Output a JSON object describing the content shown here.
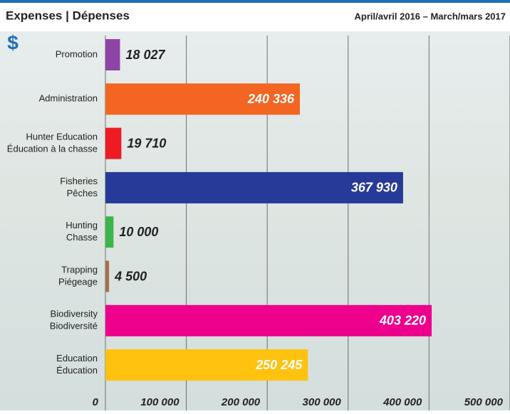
{
  "chart_data": {
    "type": "hbar",
    "title": "Expenses | Dépenses",
    "subtitle": "April/avril 2016 – March/mars 2017",
    "axis_symbol": "$",
    "categories": [
      [
        "Promotion"
      ],
      [
        "Administration"
      ],
      [
        "Hunter Education",
        "Éducation à la chasse"
      ],
      [
        "Fisheries",
        "Pêches"
      ],
      [
        "Hunting",
        "Chasse"
      ],
      [
        "Trapping",
        "Piégeage"
      ],
      [
        "Biodiversity",
        "Biodiversité"
      ],
      [
        "Education",
        "Éducation"
      ]
    ],
    "values": [
      18027,
      240336,
      19710,
      367930,
      10000,
      4500,
      403220,
      250245
    ],
    "value_labels": [
      "18 027",
      "240 336",
      "19 710",
      "367 930",
      "10 000",
      "4 500",
      "403 220",
      "250 245"
    ],
    "colors": [
      "#8e44a6",
      "#f26522",
      "#ed1c24",
      "#283a97",
      "#3cb54a",
      "#a5714a",
      "#ec008c",
      "#ffc20e"
    ],
    "xlim": [
      0,
      500000
    ],
    "xticks": [
      0,
      {
        "value": 100000,
        "label": "100 000"
      },
      {
        "value": 200000,
        "label": "200 000"
      },
      {
        "value": 300000,
        "label": "300 000"
      },
      {
        "value": 400000,
        "label": "400 000"
      },
      {
        "value": 500000,
        "label": "500 000"
      }
    ],
    "grid": true
  }
}
